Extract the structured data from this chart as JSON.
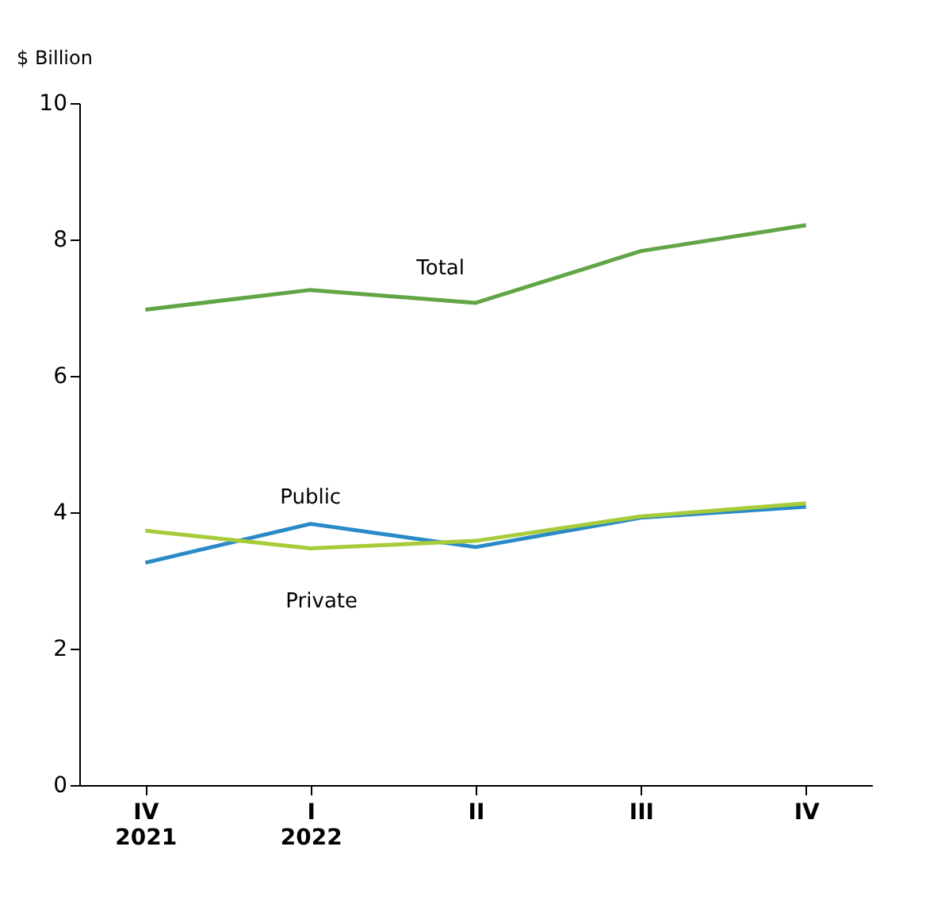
{
  "chart_data": {
    "type": "line",
    "ylabel": "$ Billion",
    "categories": [
      "IV\n2021",
      "I\n2022",
      "II",
      "III",
      "IV"
    ],
    "series": [
      {
        "name": "Total",
        "color": "#62a546",
        "values": [
          6.97,
          7.26,
          7.07,
          7.83,
          8.21
        ]
      },
      {
        "name": "Public",
        "color": "#2a8ac8",
        "values": [
          3.26,
          3.83,
          3.49,
          3.92,
          4.08
        ]
      },
      {
        "name": "Private",
        "color": "#a6cc3a",
        "values": [
          3.73,
          3.47,
          3.58,
          3.94,
          4.13
        ]
      }
    ],
    "ylim": [
      0,
      10
    ],
    "yticks": [
      0,
      2,
      4,
      6,
      8,
      10
    ],
    "grid": false,
    "legend": false,
    "marker": "none",
    "line_style": "solid"
  }
}
